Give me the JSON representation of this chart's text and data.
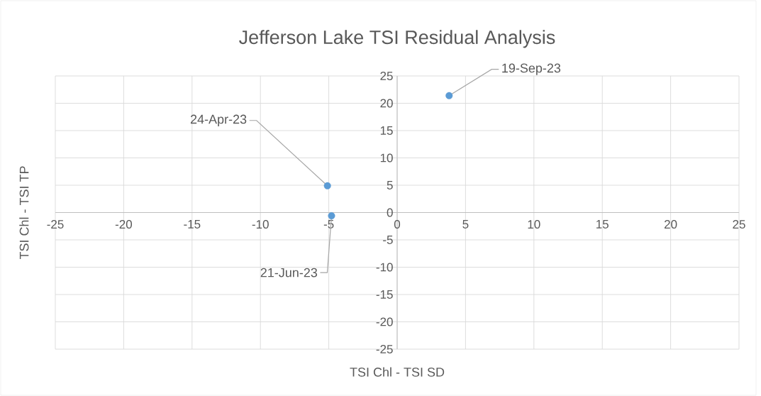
{
  "chart_data": {
    "type": "scatter",
    "title": "Jefferson Lake TSI Residual Analysis",
    "xlabel": "TSI Chl - TSI SD",
    "ylabel": "TSI Chl - TSI TP",
    "series": [
      {
        "color": "#5b9bd5",
        "x": [
          -5.1,
          -4.8,
          3.8
        ],
        "values": [
          4.9,
          -0.6,
          21.4
        ]
      }
    ],
    "annotations": [
      {
        "text": "24-Apr-23",
        "x": -5.1,
        "y": 4.9
      },
      {
        "text": "21-Jun-23",
        "x": -4.8,
        "y": -0.6
      },
      {
        "text": "19-Sep-23",
        "x": 3.8,
        "y": 21.4
      }
    ],
    "xlim": [
      -25,
      25
    ],
    "ylim": [
      -25,
      25
    ],
    "xticks": [
      -25,
      -20,
      -15,
      -10,
      -5,
      0,
      5,
      10,
      15,
      20,
      25
    ],
    "yticks": [
      -25,
      -20,
      -15,
      -10,
      -5,
      0,
      5,
      10,
      15,
      20,
      25
    ],
    "grid": true,
    "marker": "circle"
  }
}
